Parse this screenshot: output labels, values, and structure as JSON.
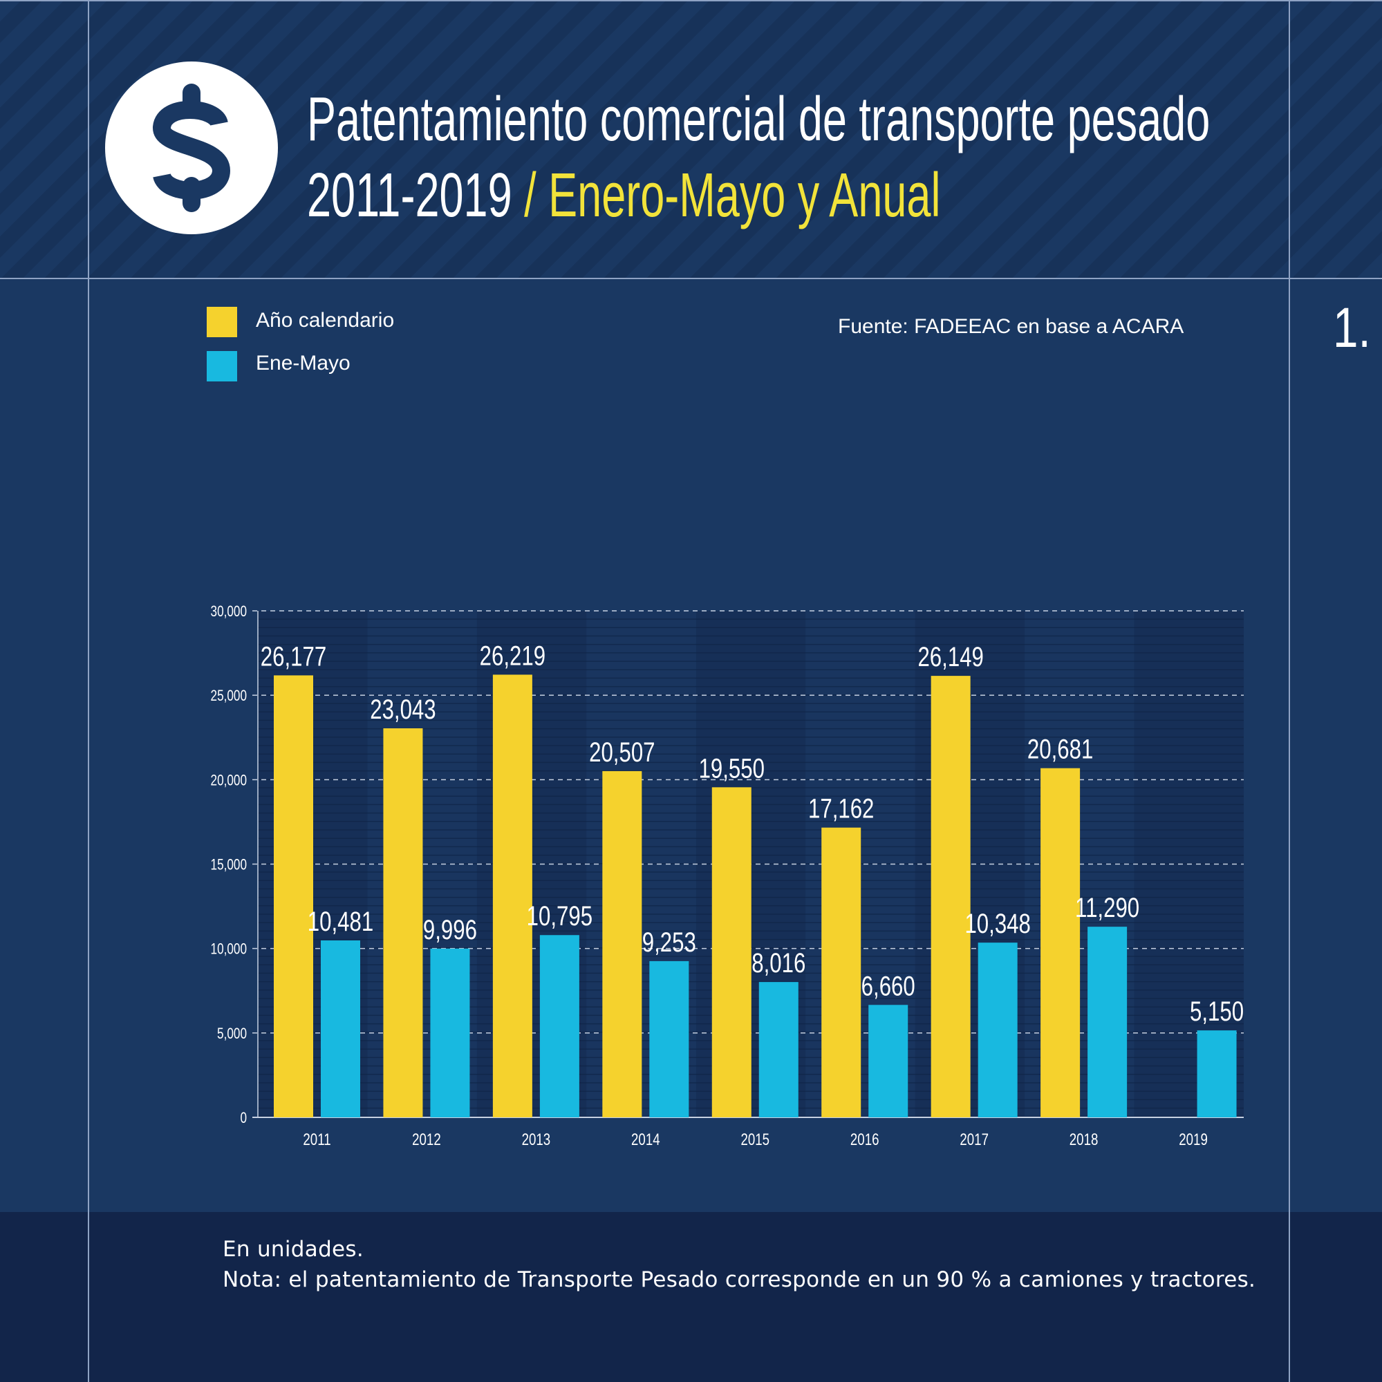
{
  "header": {
    "title_line1": "Patentamiento comercial de transporte pesado",
    "title_line2_years": "2011-2019",
    "title_line2_highlight": "/ Enero-Mayo y Anual",
    "icon": "dollar-sign-icon"
  },
  "legend": [
    {
      "label": "Año calendario",
      "color": "#f5d22d"
    },
    {
      "label": "Ene-Mayo",
      "color": "#18b9e0"
    }
  ],
  "source": "Fuente: FADEEAC en base a ACARA",
  "figure_number": "1.",
  "footer": {
    "units": "En unidades.",
    "note": "Nota: el patentamiento de Transporte Pesado corresponde en un 90 % a camiones y tractores."
  },
  "chart_data": {
    "type": "bar",
    "categories": [
      "2011",
      "2012",
      "2013",
      "2014",
      "2015",
      "2016",
      "2017",
      "2018",
      "2019"
    ],
    "series": [
      {
        "name": "Año calendario",
        "color": "#f5d22d",
        "values": [
          26177,
          23043,
          26219,
          20507,
          19550,
          17162,
          26149,
          20681,
          null
        ],
        "labels": [
          "26,177",
          "23,043",
          "26,219",
          "20,507",
          "19,550",
          "17,162",
          "26,149",
          "20,681",
          ""
        ]
      },
      {
        "name": "Ene-Mayo",
        "color": "#18b9e0",
        "values": [
          10481,
          9996,
          10795,
          9253,
          8016,
          6660,
          10348,
          11290,
          5150
        ],
        "labels": [
          "10,481",
          "9,996",
          "10,795",
          "9,253",
          "8,016",
          "6,660",
          "10,348",
          "11,290",
          "5,150"
        ]
      }
    ],
    "ylim": [
      0,
      30000
    ],
    "yticks": [
      0,
      5000,
      10000,
      15000,
      20000,
      25000,
      30000
    ],
    "ytick_labels": [
      "0",
      "5,000",
      "10,000",
      "15,000",
      "20,000",
      "25,000",
      "30,000"
    ],
    "grid": true,
    "legend_position": "top-left",
    "xlabel": "",
    "ylabel": ""
  }
}
